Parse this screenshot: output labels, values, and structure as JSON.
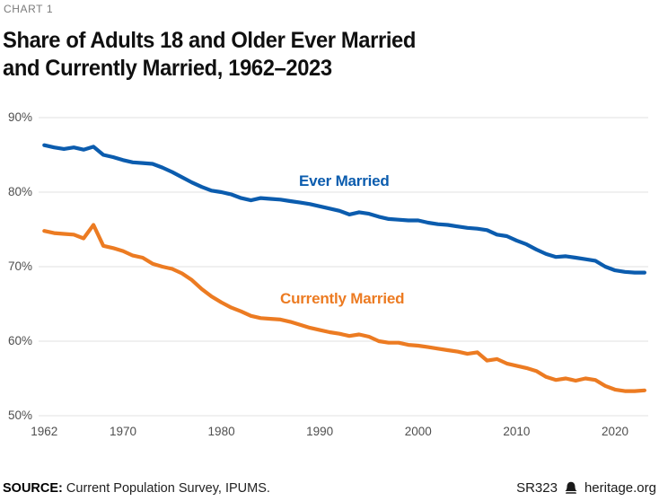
{
  "header": {
    "kicker": "CHART 1",
    "title_line1": "Share of Adults 18 and Older Ever Married",
    "title_line2": "and Currently Married, 1962–2023"
  },
  "chart_data": {
    "type": "line",
    "title": "Share of Adults 18 and Older Ever Married and Currently Married, 1962–2023",
    "xlabel": "",
    "ylabel": "",
    "xlim": [
      1962,
      2023
    ],
    "ylim": [
      50,
      90
    ],
    "x_ticks": [
      1962,
      1970,
      1980,
      1990,
      2000,
      2010,
      2020
    ],
    "y_ticks": [
      50,
      60,
      70,
      80,
      90
    ],
    "y_tick_suffix": "%",
    "grid": "horizontal",
    "legend_position": "inline-labels",
    "x": [
      1962,
      1963,
      1964,
      1965,
      1966,
      1967,
      1968,
      1969,
      1970,
      1971,
      1972,
      1973,
      1974,
      1975,
      1976,
      1977,
      1978,
      1979,
      1980,
      1981,
      1982,
      1983,
      1984,
      1985,
      1986,
      1987,
      1988,
      1989,
      1990,
      1991,
      1992,
      1993,
      1994,
      1995,
      1996,
      1997,
      1998,
      1999,
      2000,
      2001,
      2002,
      2003,
      2004,
      2005,
      2006,
      2007,
      2008,
      2009,
      2010,
      2011,
      2012,
      2013,
      2014,
      2015,
      2016,
      2017,
      2018,
      2019,
      2020,
      2021,
      2022,
      2023
    ],
    "series": [
      {
        "name": "Ever Married",
        "color": "#0b5cae",
        "values": [
          86.3,
          86.0,
          85.8,
          86.0,
          85.7,
          86.1,
          85.0,
          84.7,
          84.3,
          84.0,
          83.9,
          83.8,
          83.3,
          82.7,
          82.0,
          81.3,
          80.7,
          80.2,
          80.0,
          79.7,
          79.2,
          78.9,
          79.2,
          79.1,
          79.0,
          78.8,
          78.6,
          78.4,
          78.1,
          77.8,
          77.5,
          77.0,
          77.3,
          77.1,
          76.7,
          76.4,
          76.3,
          76.2,
          76.2,
          75.9,
          75.7,
          75.6,
          75.4,
          75.2,
          75.1,
          74.9,
          74.3,
          74.1,
          73.5,
          73.0,
          72.3,
          71.7,
          71.3,
          71.4,
          71.2,
          71.0,
          70.8,
          70.0,
          69.5,
          69.3,
          69.2,
          69.2
        ]
      },
      {
        "name": "Currently Married",
        "color": "#ec7b22",
        "values": [
          74.8,
          74.5,
          74.4,
          74.3,
          73.8,
          75.6,
          72.8,
          72.5,
          72.1,
          71.5,
          71.2,
          70.4,
          70.0,
          69.7,
          69.1,
          68.2,
          67.0,
          66.0,
          65.2,
          64.5,
          64.0,
          63.4,
          63.1,
          63.0,
          62.9,
          62.6,
          62.2,
          61.8,
          61.5,
          61.2,
          61.0,
          60.7,
          60.9,
          60.6,
          60.0,
          59.8,
          59.8,
          59.5,
          59.4,
          59.2,
          59.0,
          58.8,
          58.6,
          58.3,
          58.5,
          57.4,
          57.6,
          57.0,
          56.7,
          56.4,
          56.0,
          55.2,
          54.8,
          55.0,
          54.7,
          55.0,
          54.8,
          54.0,
          53.5,
          53.3,
          53.3,
          53.4
        ]
      }
    ]
  },
  "footer": {
    "source_label": "SOURCE:",
    "source_text": " Current Population Survey, IPUMS.",
    "report_id": "SR323",
    "site": "heritage.org",
    "logo_icon": "heritage-bell-icon"
  }
}
